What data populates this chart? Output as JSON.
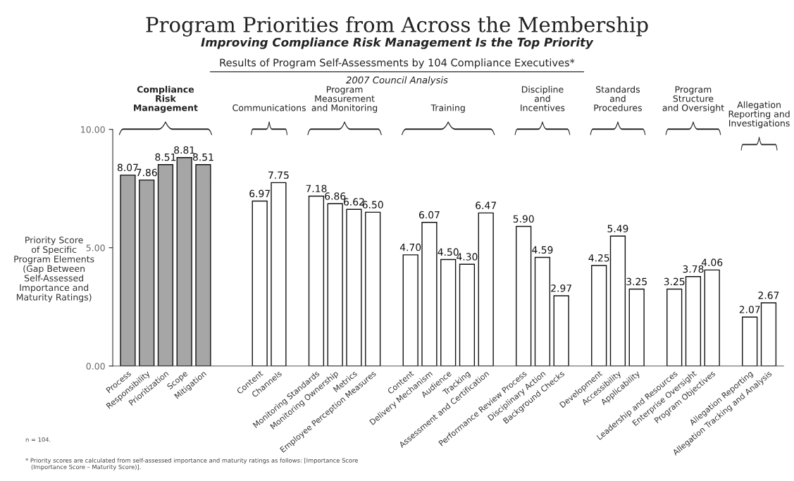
{
  "chart_data": {
    "type": "bar",
    "title": "Program Priorities from Across the Membership",
    "subtitle": "Improving Compliance Risk Management Is the Top Priority",
    "ylabel": "Priority Score\nof Specific\nProgram Elements\n(Gap Between\nSelf-Assessed\nImportance and\nMaturity Ratings)",
    "categories": [
      "Process",
      "Responsibility",
      "Prioritization",
      "Scope",
      "Mitigation",
      null,
      null,
      "Content",
      "Channels",
      null,
      "Monitoring Standards",
      "Monitoring Ownership",
      "Metrics",
      "Employee Perception Measures",
      null,
      "Content",
      "Delivery Mechanism",
      "Audience",
      "Tracking",
      "Assessment and Certification",
      null,
      "Performance Review Process",
      "Disciplinary Action",
      "Background Checks",
      null,
      "Development",
      "Accessibility",
      "Applicability",
      null,
      "Leadership and Resources",
      "Enterprise Oversight",
      "Program Objectives",
      null,
      "Allegation Reporting",
      "Allegation Tracking and Analysis"
    ],
    "values": [
      8.07,
      7.86,
      8.51,
      8.81,
      8.51,
      null,
      null,
      6.97,
      7.75,
      null,
      7.18,
      6.86,
      6.62,
      6.5,
      null,
      4.7,
      6.07,
      4.5,
      4.3,
      6.47,
      null,
      5.9,
      4.59,
      2.97,
      null,
      4.25,
      5.49,
      3.25,
      null,
      3.25,
      3.78,
      4.06,
      null,
      2.07,
      2.67
    ],
    "value_labels": [
      "8.07",
      "7.86",
      "8.51",
      "8.81",
      "8.51",
      null,
      null,
      "6.97",
      "7.75",
      null,
      "7.18",
      "6.86",
      "6.62",
      "6.50",
      null,
      "4.70",
      "6.07",
      "4.50",
      "4.30",
      "6.47",
      null,
      "5.90",
      "4.59",
      "2.97",
      null,
      "4.25",
      "5.49",
      "3.25",
      null,
      "3.25",
      "3.78",
      "4.06",
      null,
      "2.07",
      "2.67"
    ],
    "colors": [
      "#a6a6a6",
      "#a6a6a6",
      "#a6a6a6",
      "#a6a6a6",
      "#a6a6a6",
      null,
      null,
      "#ffffff",
      "#ffffff",
      null,
      "#ffffff",
      "#ffffff",
      "#ffffff",
      "#ffffff",
      null,
      "#ffffff",
      "#ffffff",
      "#ffffff",
      "#ffffff",
      "#ffffff",
      null,
      "#ffffff",
      "#ffffff",
      "#ffffff",
      null,
      "#ffffff",
      "#ffffff",
      "#ffffff",
      null,
      "#ffffff",
      "#ffffff",
      "#ffffff",
      null,
      "#ffffff",
      "#ffffff"
    ],
    "ylim": [
      0,
      10
    ],
    "yticks": [
      {
        "value": 0,
        "label": "0.00"
      },
      {
        "value": 5,
        "label": "5.00"
      },
      {
        "value": 10,
        "label": "10.00"
      }
    ],
    "grid": false,
    "legend": false,
    "annotations": [
      "Compliance\nRisk\nManagement",
      "Communications",
      "Program\nMeasurement\nand Monitoring",
      "Training",
      "Discipline\nand\nIncentives",
      "Standards\nand\nProcedures",
      "Program\nStructure\nand Oversight",
      "Allegation\nReporting and\nInvestigations",
      "Results of Program Self-Assessments by 104 Compliance Executives*",
      "2007 Council Analysis",
      "n = 104.",
      "* Priority scores are calculated from self-assessed importance and maturity ratings as follows: [Importance Score\n   (Importance Score – Maturity Score)]."
    ]
  }
}
